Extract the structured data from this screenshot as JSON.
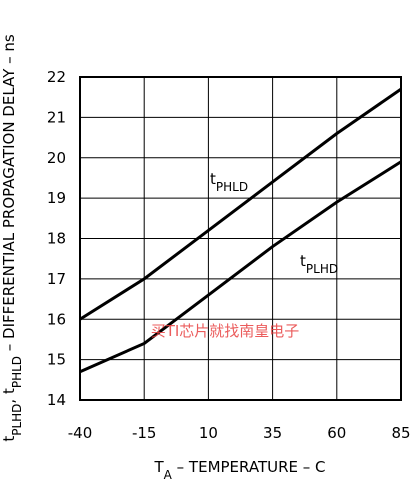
{
  "chart_data": {
    "type": "line",
    "ylabel": [
      {
        "text": "t"
      },
      {
        "text": "PLHD",
        "sub": true
      },
      {
        "text": ", t"
      },
      {
        "text": "PHLD",
        "sub": true
      },
      {
        "text": " – DIFFERENTIAL PROPAGATION DELAY – ns"
      }
    ],
    "xlabel": [
      {
        "text": "T"
      },
      {
        "text": "A",
        "sub": true
      },
      {
        "text": " – TEMPERATURE – C"
      }
    ],
    "x": [
      -40,
      -15,
      10,
      35,
      60,
      85
    ],
    "series": [
      {
        "label": [
          {
            "text": "t"
          },
          {
            "text": "PHLD",
            "sub": true
          }
        ],
        "color": "#000000",
        "values": [
          16.0,
          17.0,
          18.2,
          19.4,
          20.6,
          21.7
        ]
      },
      {
        "label": [
          {
            "text": "t"
          },
          {
            "text": "PLHD",
            "sub": true
          }
        ],
        "color": "#000000",
        "values": [
          14.7,
          15.4,
          16.6,
          17.8,
          18.9,
          19.9
        ]
      }
    ],
    "xlim": [
      -40,
      85
    ],
    "xticks": [
      -40,
      -15,
      10,
      35,
      60,
      85
    ],
    "ylim": [
      14,
      22
    ],
    "yticks": [
      14,
      15,
      16,
      17,
      18,
      19,
      20,
      21,
      22
    ],
    "grid": true,
    "watermark": "买TI芯片就找南皇电子"
  }
}
